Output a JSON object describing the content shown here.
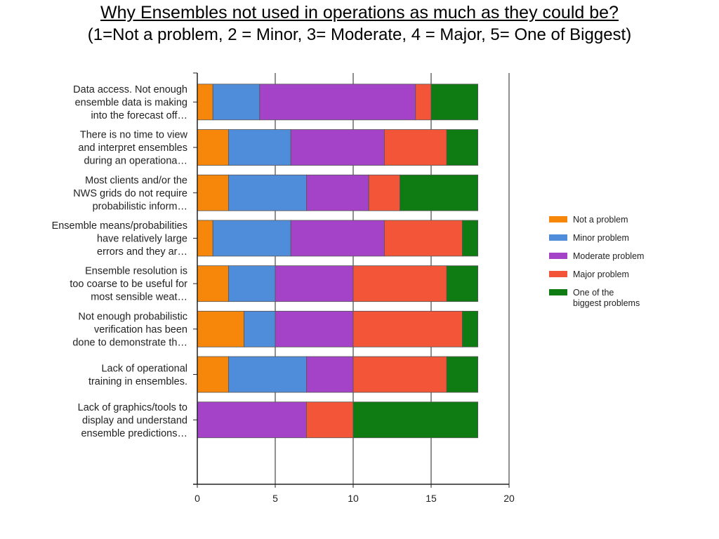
{
  "title": "Why Ensembles not used in operations as much as they could be?",
  "subtitle": "(1=Not a problem, 2 = Minor, 3= Moderate, 4 = Major, 5= One of Biggest)",
  "chart_data": {
    "type": "bar",
    "orientation": "horizontal",
    "stacked": true,
    "categories": [
      [
        "Data access. Not enough",
        "ensemble data is making",
        "into the forecast off…"
      ],
      [
        "There is no time to view",
        "and interpret ensembles",
        "during an operationa…"
      ],
      [
        "Most clients and/or the",
        "NWS grids do not require",
        "probabilistic inform…"
      ],
      [
        "Ensemble means/probabilities",
        "have relatively large",
        "errors and they ar…"
      ],
      [
        "Ensemble resolution is",
        "too coarse to be useful for",
        "most sensible weat…"
      ],
      [
        "Not enough probabilistic",
        "verification has been",
        "done to demonstrate th…"
      ],
      [
        "Lack of operational",
        "training in ensembles."
      ],
      [
        "Lack of graphics/tools to",
        "display and understand",
        "ensemble predictions…"
      ]
    ],
    "series": [
      {
        "name": "Not a problem",
        "color": "#f7870b",
        "values": [
          1,
          2,
          2,
          1,
          2,
          3,
          2,
          0
        ]
      },
      {
        "name": "Minor problem",
        "color": "#4f8ddb",
        "values": [
          3,
          4,
          5,
          5,
          3,
          2,
          5,
          0
        ]
      },
      {
        "name": "Moderate problem",
        "color": "#a442c8",
        "values": [
          10,
          6,
          4,
          6,
          5,
          5,
          3,
          7
        ]
      },
      {
        "name": "Major problem",
        "color": "#f25537",
        "values": [
          1,
          4,
          2,
          5,
          6,
          7,
          6,
          3
        ]
      },
      {
        "name": "One of the biggest problems",
        "legend_lines": [
          "One of the",
          "biggest problems"
        ],
        "color": "#0f7c13",
        "values": [
          3,
          2,
          5,
          1,
          2,
          1,
          2,
          8
        ]
      }
    ],
    "xlim": [
      0,
      20
    ],
    "xticks": [
      "0",
      "5",
      "10",
      "15",
      "20"
    ],
    "grid": true,
    "legend_position": "right"
  }
}
